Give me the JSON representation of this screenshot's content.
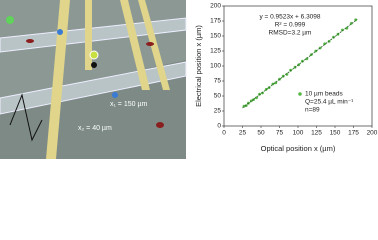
{
  "illustration": {
    "labels": [
      "x₁ = 150 µm",
      "x₂ = 40 µm"
    ]
  },
  "chart_data": {
    "type": "scatter",
    "x_label": "Optical position x (µm)",
    "y_label": "Electrical position x (µm)",
    "annotations": [
      "y = 0.9523x + 6.3098",
      "R² = 0.999",
      "RMSD=3.2 µm"
    ],
    "legend_notes": [
      "Q=25.4 µL min⁻¹",
      "n=89"
    ],
    "xlim": [
      0,
      200
    ],
    "xticks": [
      0,
      25,
      50,
      75,
      100,
      125,
      150,
      175,
      200
    ],
    "ylim": [
      0,
      200
    ],
    "yticks": [
      0,
      25,
      50,
      75,
      100,
      125,
      150,
      175,
      200
    ],
    "legend": "lower right",
    "series": [
      {
        "name": "10 µm beads",
        "color": "#57b846",
        "mode": "markers",
        "x": [
          27,
          30,
          33,
          37,
          40,
          44,
          48,
          52,
          57,
          61,
          66,
          70,
          75,
          80,
          85,
          90,
          96,
          101,
          106,
          112,
          118,
          124,
          130,
          136,
          142,
          148,
          154,
          160,
          166,
          172,
          178
        ],
        "values": [
          33,
          34,
          38,
          42,
          44,
          47,
          53,
          55,
          61,
          64,
          70,
          72,
          78,
          83,
          86,
          93,
          98,
          102,
          108,
          112,
          119,
          125,
          130,
          137,
          141,
          148,
          153,
          160,
          163,
          171,
          177
        ]
      },
      {
        "color": "#2e6b2a",
        "mode": "line",
        "x": [
          25,
          180
        ],
        "values": [
          30.12,
          177.72
        ]
      }
    ]
  }
}
